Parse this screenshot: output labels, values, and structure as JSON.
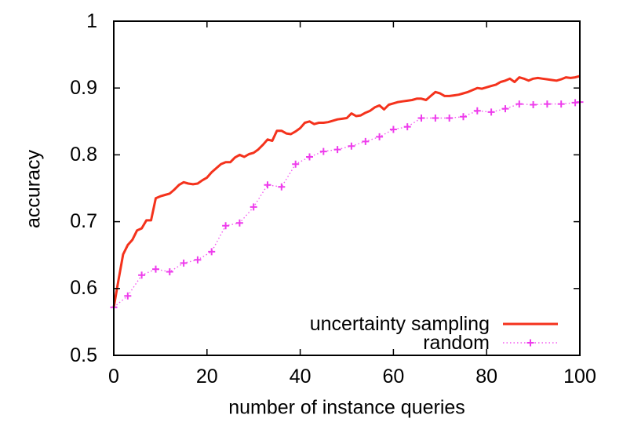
{
  "colors": {
    "background": "#ffffff",
    "axis": "#000000",
    "text": "#000000",
    "uncertainty_sampling_line": "#f4321c",
    "random_line": "#f35af0",
    "random_marker": "#ee3cec"
  },
  "chart_data": {
    "type": "line",
    "title": "",
    "xlabel": "number of instance queries",
    "ylabel": "accuracy",
    "xlim": [
      0,
      100
    ],
    "ylim": [
      0.5,
      1.0
    ],
    "xticks": [
      0,
      20,
      40,
      60,
      80,
      100
    ],
    "xtick_labels": [
      "0",
      "20",
      "40",
      "60",
      "80",
      "100"
    ],
    "yticks": [
      0.5,
      0.6,
      0.7,
      0.8,
      0.9,
      1.0
    ],
    "ytick_labels": [
      "0.5",
      "0.6",
      "0.7",
      "0.8",
      "0.9",
      "1"
    ],
    "grid": false,
    "legend_position": "inside-bottom-right",
    "series": [
      {
        "name": "uncertainty sampling",
        "style": "solid",
        "color": "#f4321c",
        "marker": "none",
        "x": [
          0,
          1,
          2,
          3,
          4,
          5,
          6,
          7,
          8,
          9,
          10,
          11,
          12,
          13,
          14,
          15,
          16,
          17,
          18,
          19,
          20,
          21,
          22,
          23,
          24,
          25,
          26,
          27,
          28,
          29,
          30,
          31,
          32,
          33,
          34,
          35,
          36,
          37,
          38,
          39,
          40,
          41,
          42,
          43,
          44,
          45,
          46,
          47,
          48,
          49,
          50,
          51,
          52,
          53,
          54,
          55,
          56,
          57,
          58,
          59,
          60,
          61,
          62,
          63,
          64,
          65,
          66,
          67,
          68,
          69,
          70,
          71,
          72,
          73,
          74,
          75,
          76,
          77,
          78,
          79,
          80,
          81,
          82,
          83,
          84,
          85,
          86,
          87,
          88,
          89,
          90,
          91,
          92,
          93,
          94,
          95,
          96,
          97,
          98,
          99,
          100
        ],
        "y": [
          0.572,
          0.612,
          0.651,
          0.665,
          0.673,
          0.687,
          0.69,
          0.702,
          0.702,
          0.735,
          0.738,
          0.74,
          0.742,
          0.748,
          0.755,
          0.759,
          0.757,
          0.756,
          0.757,
          0.762,
          0.766,
          0.774,
          0.78,
          0.786,
          0.789,
          0.789,
          0.796,
          0.8,
          0.797,
          0.801,
          0.803,
          0.808,
          0.815,
          0.823,
          0.821,
          0.836,
          0.836,
          0.832,
          0.831,
          0.835,
          0.84,
          0.848,
          0.85,
          0.846,
          0.848,
          0.848,
          0.849,
          0.851,
          0.853,
          0.854,
          0.855,
          0.862,
          0.858,
          0.859,
          0.863,
          0.866,
          0.871,
          0.874,
          0.868,
          0.875,
          0.877,
          0.879,
          0.88,
          0.881,
          0.882,
          0.884,
          0.884,
          0.882,
          0.888,
          0.894,
          0.892,
          0.888,
          0.888,
          0.889,
          0.89,
          0.892,
          0.894,
          0.897,
          0.9,
          0.899,
          0.901,
          0.903,
          0.905,
          0.909,
          0.911,
          0.914,
          0.909,
          0.916,
          0.914,
          0.911,
          0.914,
          0.915,
          0.914,
          0.913,
          0.912,
          0.911,
          0.913,
          0.916,
          0.915,
          0.916,
          0.918
        ]
      },
      {
        "name": "random",
        "style": "dotted",
        "color": "#f35af0",
        "marker": "plus",
        "marker_color": "#ee3cec",
        "x": [
          0,
          3,
          6,
          9,
          12,
          15,
          18,
          21,
          24,
          27,
          30,
          33,
          36,
          39,
          42,
          45,
          48,
          51,
          54,
          57,
          60,
          63,
          66,
          69,
          72,
          75,
          78,
          81,
          84,
          87,
          90,
          93,
          96,
          99,
          100
        ],
        "y": [
          0.572,
          0.589,
          0.62,
          0.629,
          0.625,
          0.638,
          0.643,
          0.655,
          0.694,
          0.698,
          0.722,
          0.755,
          0.752,
          0.786,
          0.797,
          0.805,
          0.808,
          0.813,
          0.82,
          0.827,
          0.838,
          0.842,
          0.855,
          0.855,
          0.855,
          0.857,
          0.866,
          0.864,
          0.869,
          0.876,
          0.875,
          0.876,
          0.876,
          0.878,
          0.879
        ]
      }
    ]
  }
}
